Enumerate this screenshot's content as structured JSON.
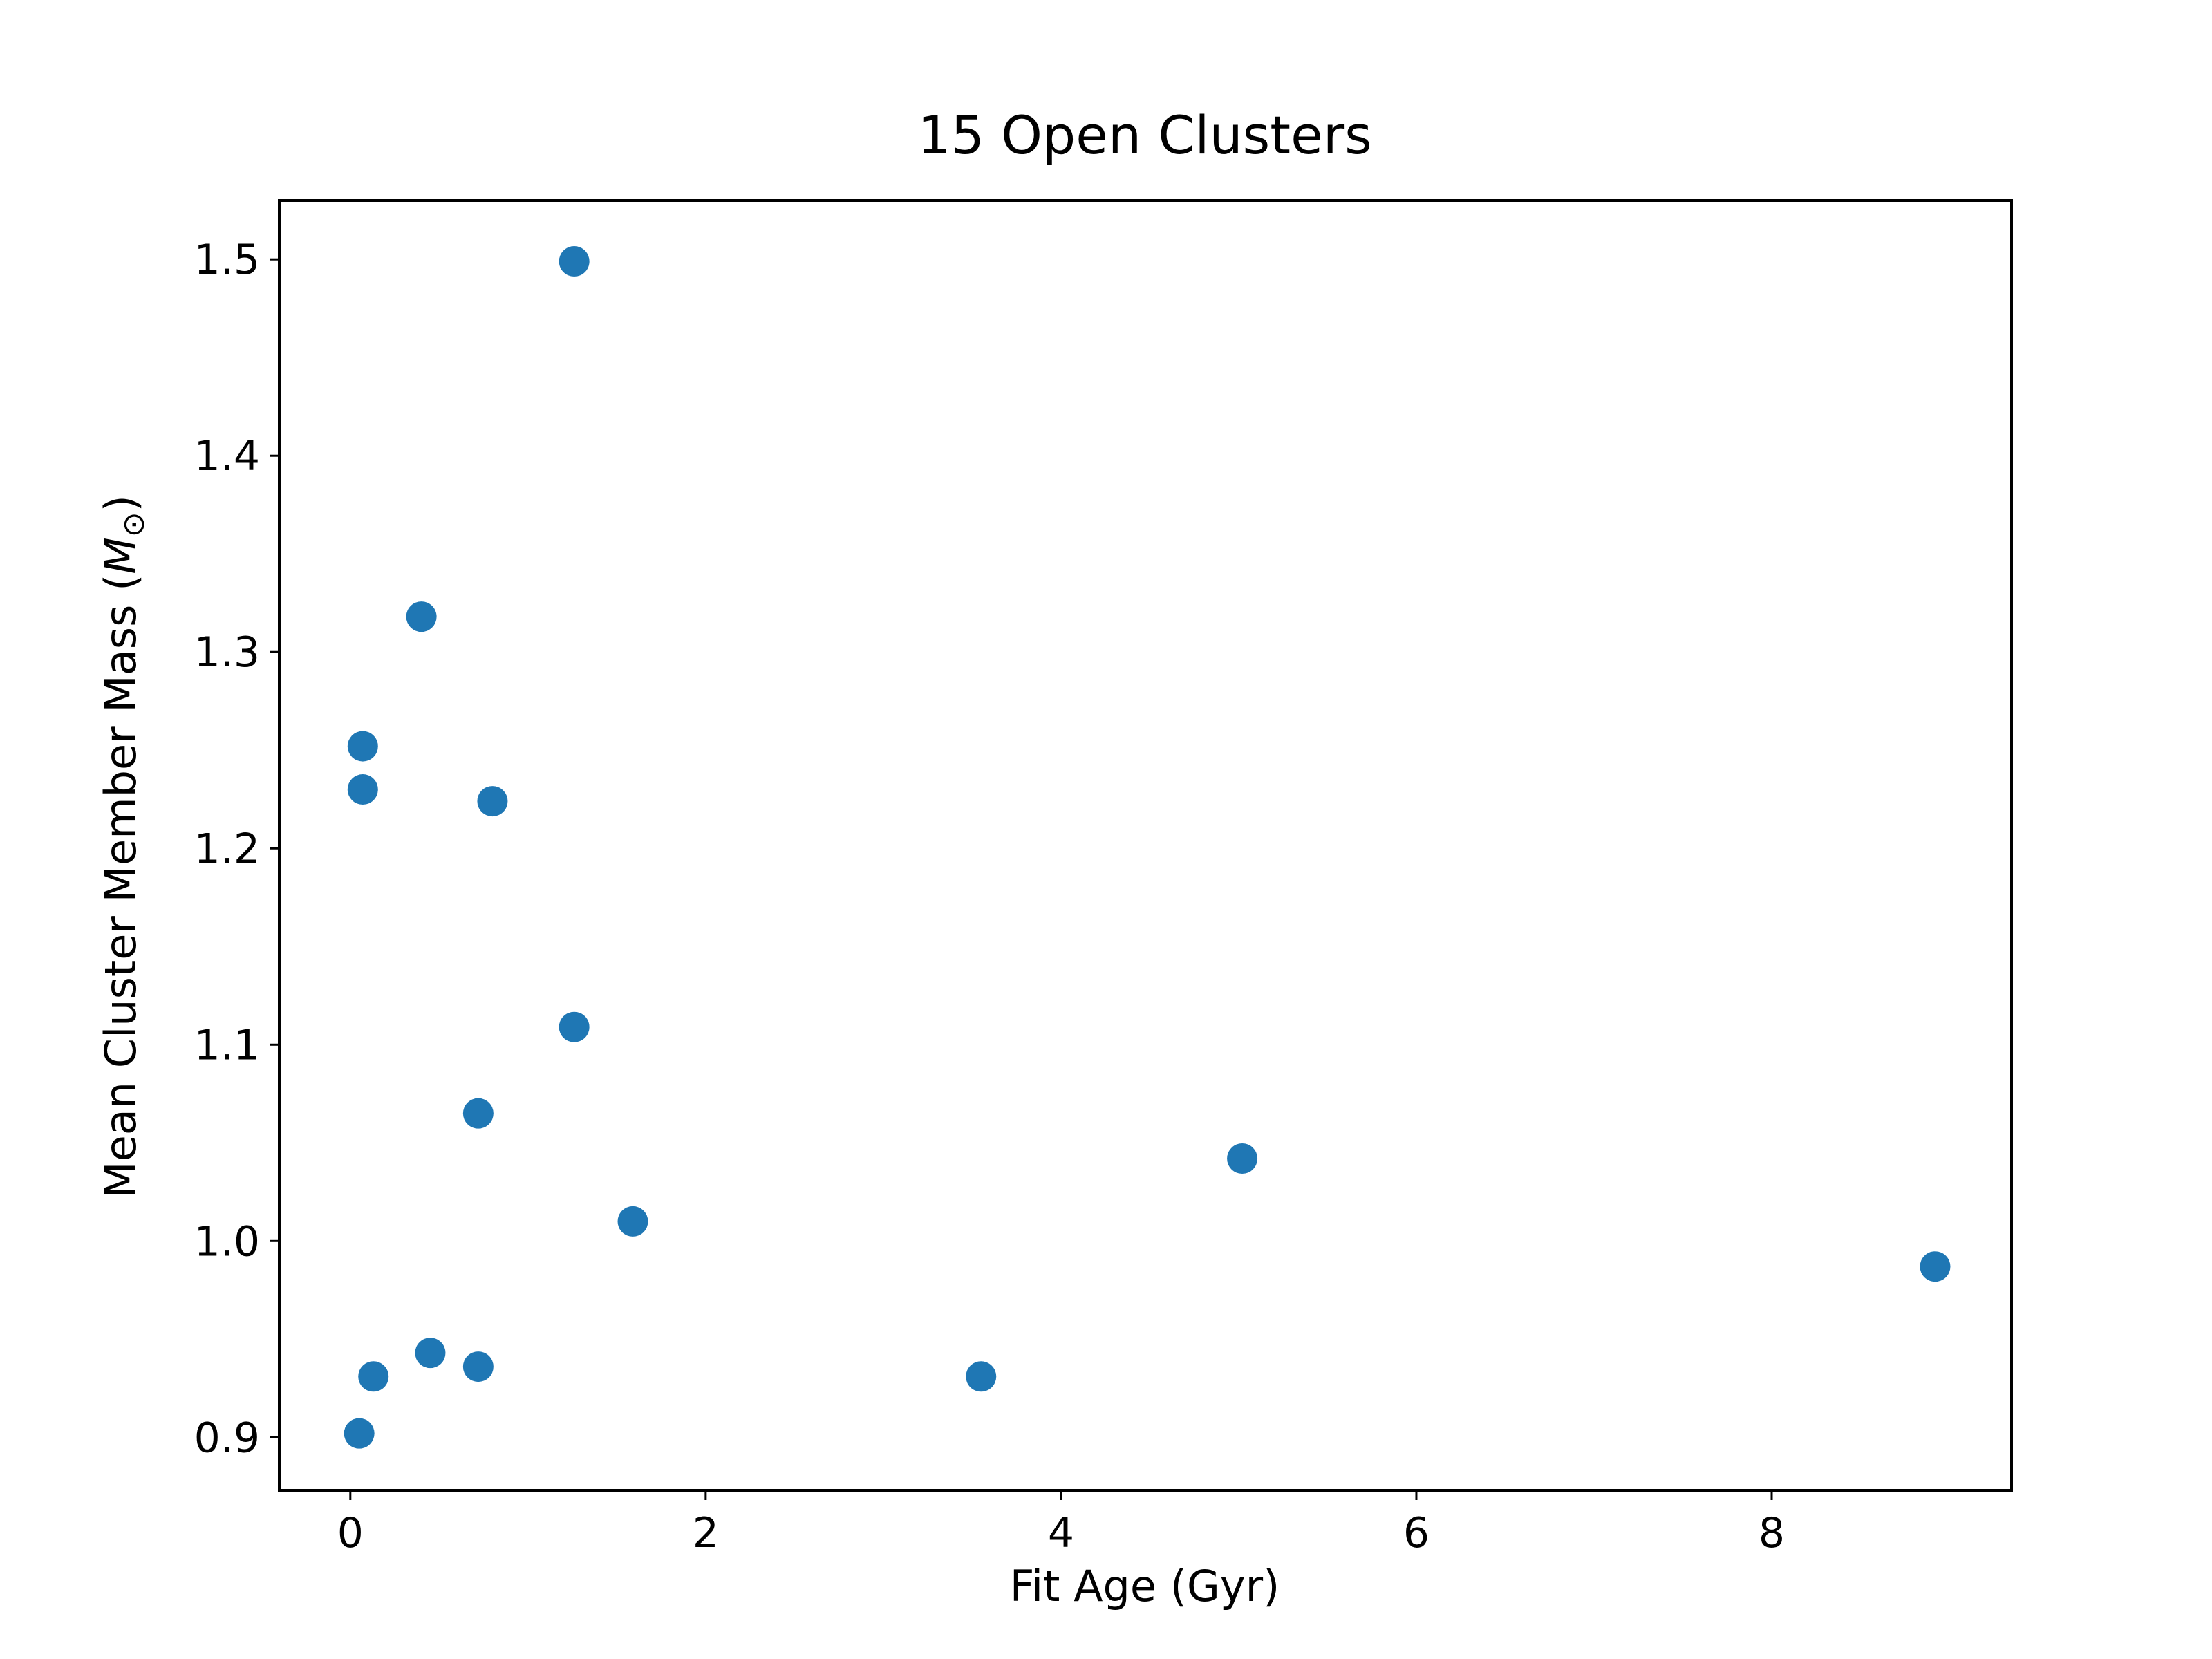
{
  "chart_data": {
    "type": "scatter",
    "title": "15 Open Clusters",
    "xlabel": "Fit Age (Gyr)",
    "ylabel": "Mean Cluster Member Mass (",
    "ylabel_symbol": "M",
    "ylabel_subscript": "⊙",
    "ylabel_close": ")",
    "xlim": [
      -0.4,
      9.35
    ],
    "ylim": [
      0.873,
      1.53
    ],
    "xticks": [
      0,
      2,
      4,
      6,
      8
    ],
    "yticks": [
      0.9,
      1.0,
      1.1,
      1.2,
      1.3,
      1.4,
      1.5
    ],
    "xtick_labels": [
      "0",
      "2",
      "4",
      "6",
      "8"
    ],
    "ytick_labels": [
      "0.9",
      "1.0",
      "1.1",
      "1.2",
      "1.3",
      "1.4",
      "1.5"
    ],
    "marker_color": "#1f77b4",
    "grid": false,
    "series": [
      {
        "points": [
          {
            "x": 1.26,
            "y": 1.499
          },
          {
            "x": 0.4,
            "y": 1.318
          },
          {
            "x": 0.07,
            "y": 1.252
          },
          {
            "x": 0.07,
            "y": 1.23
          },
          {
            "x": 0.8,
            "y": 1.224
          },
          {
            "x": 1.26,
            "y": 1.109
          },
          {
            "x": 0.72,
            "y": 1.065
          },
          {
            "x": 5.02,
            "y": 1.042
          },
          {
            "x": 1.59,
            "y": 1.01
          },
          {
            "x": 8.92,
            "y": 0.987
          },
          {
            "x": 0.45,
            "y": 0.943
          },
          {
            "x": 0.72,
            "y": 0.936
          },
          {
            "x": 0.13,
            "y": 0.931
          },
          {
            "x": 3.55,
            "y": 0.931
          },
          {
            "x": 0.05,
            "y": 0.902
          }
        ]
      }
    ]
  }
}
